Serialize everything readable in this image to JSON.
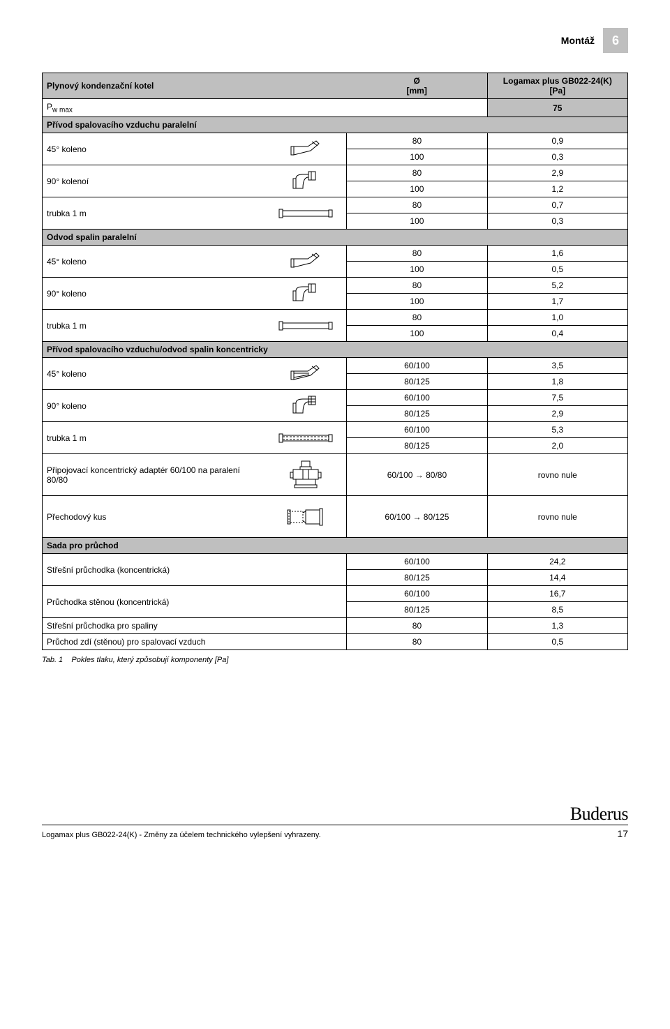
{
  "header": {
    "title": "Montáž",
    "section_number": "6"
  },
  "table": {
    "col_headers": {
      "label": "Plynový kondenzační kotel",
      "diameter": "Ø\n[mm]",
      "value": "Logamax plus GB022-24(K)\n[Pa]"
    },
    "pwmax_label": "w max",
    "pwmax_value": "75",
    "sections": [
      {
        "title": "Přívod spalovacího vzduchu paralelní",
        "rows": [
          {
            "label": "45° koleno",
            "icon": "elbow45",
            "data": [
              [
                "80",
                "0,9"
              ],
              [
                "100",
                "0,3"
              ]
            ]
          },
          {
            "label": "90° kolenoí",
            "icon": "elbow90",
            "data": [
              [
                "80",
                "2,9"
              ],
              [
                "100",
                "1,2"
              ]
            ]
          },
          {
            "label": "trubka 1 m",
            "icon": "pipe",
            "data": [
              [
                "80",
                "0,7"
              ],
              [
                "100",
                "0,3"
              ]
            ]
          }
        ]
      },
      {
        "title": "Odvod spalin paralelní",
        "rows": [
          {
            "label": "45° koleno",
            "icon": "elbow45",
            "data": [
              [
                "80",
                "1,6"
              ],
              [
                "100",
                "0,5"
              ]
            ]
          },
          {
            "label": "90° koleno",
            "icon": "elbow90",
            "data": [
              [
                "80",
                "5,2"
              ],
              [
                "100",
                "1,7"
              ]
            ]
          },
          {
            "label": "trubka 1 m",
            "icon": "pipe",
            "data": [
              [
                "80",
                "1,0"
              ],
              [
                "100",
                "0,4"
              ]
            ]
          }
        ]
      },
      {
        "title": "Přívod spalovacího vzduchu/odvod spalin koncentricky",
        "rows": [
          {
            "label": "45° koleno",
            "icon": "elbow45c",
            "data": [
              [
                "60/100",
                "3,5"
              ],
              [
                "80/125",
                "1,8"
              ]
            ]
          },
          {
            "label": "90° koleno",
            "icon": "elbow90c",
            "data": [
              [
                "60/100",
                "7,5"
              ],
              [
                "80/125",
                "2,9"
              ]
            ]
          },
          {
            "label": "trubka 1 m",
            "icon": "pipec",
            "data": [
              [
                "60/100",
                "5,3"
              ],
              [
                "80/125",
                "2,0"
              ]
            ]
          }
        ]
      }
    ],
    "adapter": {
      "label": "Připojovací koncentrický adaptér 60/100 na paralení 80/80",
      "icon": "adapter",
      "d": "60/100 → 80/80",
      "v": "rovno nule"
    },
    "transition": {
      "label": "Přechodový kus",
      "icon": "transition",
      "d": "60/100 → 80/125",
      "v": "rovno nule"
    },
    "passage": {
      "title": "Sada pro průchod",
      "rows": [
        {
          "label": "Střešní průchodka (koncentrická)",
          "data": [
            [
              "60/100",
              "24,2"
            ],
            [
              "80/125",
              "14,4"
            ]
          ]
        },
        {
          "label": "Průchodka stěnou (koncentrická)",
          "data": [
            [
              "60/100",
              "16,7"
            ],
            [
              "80/125",
              "8,5"
            ]
          ]
        }
      ],
      "single_rows": [
        {
          "label": "Střešní průchodka pro spaliny",
          "d": "80",
          "v": "1,3"
        },
        {
          "label": "Průchod zdí (stěnou) pro spalovací vzduch",
          "d": "80",
          "v": "0,5"
        }
      ]
    }
  },
  "caption": {
    "prefix": "Tab. 1",
    "text": "Pokles tlaku, který způsobují komponenty [Pa]"
  },
  "footer": {
    "left": "Logamax plus GB022-24(K) - Změny za účelem technického vylepšení vyhrazeny.",
    "page": "17",
    "brand": "Buderus"
  },
  "icons_svg": {
    "elbow45": "<svg width='46' height='28'><g fill='none' stroke='#000' stroke-width='1'><rect x='2' y='10' width='4' height='12'/><path d='M6 10 L26 10 L38 2 L42 6 L30 16 L6 22 Z'/><line x1='32' y1='3' x2='40' y2='9'/></g></svg>",
    "elbow90": "<svg width='40' height='32'><g fill='none' stroke='#000' stroke-width='1'><rect x='2' y='12' width='4' height='14'/><path d='M6 12 Q6 6 16 6 L24 6 L24 2 L34 2 L34 14 L24 14 L24 10 Q16 10 16 26 L6 26 Z'/><rect x='24' y='2' width='4' height='12'/></g></svg>",
    "pipe": "<svg width='80' height='16'><g fill='none' stroke='#000' stroke-width='1'><rect x='2' y='2' width='5' height='12'/><rect x='7' y='4' width='66' height='8'/><rect x='73' y='3' width='5' height='10'/></g></svg>",
    "elbow45c": "<svg width='46' height='28'><g fill='none' stroke='#000' stroke-width='1'><rect x='2' y='10' width='4' height='12'/><path d='M6 10 L26 10 L38 2 L42 6 L30 16 L6 22 Z'/><line x1='6' y1='13' x2='28' y2='13'/><line x1='6' y1='19' x2='28' y2='15'/><line x1='32' y1='3' x2='40' y2='9'/></g></svg>",
    "elbow90c": "<svg width='40' height='32'><g fill='none' stroke='#000' stroke-width='1'><rect x='2' y='12' width='4' height='14'/><path d='M6 12 Q6 6 16 6 L24 6 L24 2 L34 2 L34 14 L24 14 L24 10 Q16 10 16 26 L6 26 Z'/><rect x='24' y='2' width='4' height='12'/><line x1='24' y1='6' x2='34' y2='6'/><line x1='24' y1='10' x2='34' y2='10'/></g></svg>",
    "pipec": "<svg width='80' height='16'><g fill='none' stroke='#000' stroke-width='1'><rect x='2' y='2' width='5' height='12'/><rect x='7' y='4' width='66' height='8'/><line x1='7' y1='6' x2='73' y2='6' stroke-dasharray='3 2'/><line x1='7' y1='10' x2='73' y2='10' stroke-dasharray='3 2'/><rect x='73' y='3' width='5' height='10'/></g></svg>",
    "adapter": "<svg width='56' height='44'><g fill='none' stroke='#000' stroke-width='1'><rect x='22' y='2' width='12' height='8'/><rect x='20' y='10' width='16' height='4'/><rect x='10' y='14' width='36' height='14'/><rect x='6' y='18' width='4' height='8'/><rect x='46' y='18' width='4' height='8'/><line x1='14' y1='28' x2='14' y2='36'/><line x1='42' y1='28' x2='42' y2='36'/><rect x='12' y='36' width='32' height='4'/><line x1='24' y1='14' x2='24' y2='28'/><line x1='32' y1='14' x2='32' y2='28'/></g></svg>",
    "transition": "<svg width='56' height='28'><g fill='none' stroke='#000' stroke-width='1'><rect x='4' y='6' width='20' height='16' stroke-dasharray='2 2'/><rect x='2' y='4' width='4' height='20'/><rect x='28' y='4' width='20' height='20'/><rect x='48' y='2' width='4' height='24'/><line x1='24' y1='8' x2='28' y2='6'/><line x1='24' y1='20' x2='28' y2='22'/></g></svg>"
  }
}
